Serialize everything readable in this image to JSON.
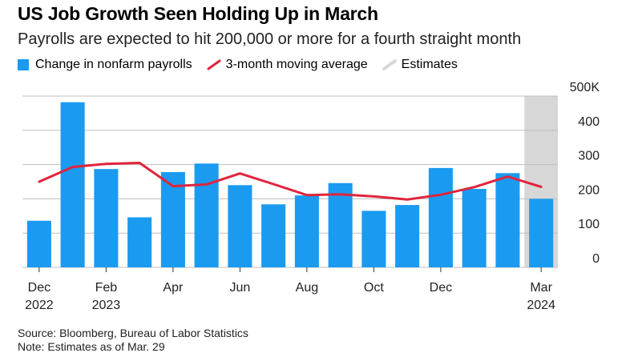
{
  "title": "US Job Growth Seen Holding Up in March",
  "subtitle": "Payrolls are expected to hit 200,000 or more for a fourth straight month",
  "legend": {
    "bars": "Change in nonfarm payrolls",
    "line": "3-month moving average",
    "estimates": "Estimates"
  },
  "footer": {
    "source": "Source: Bloomberg, Bureau of Labor Statistics",
    "note": "Note: Estimates as of Mar. 29"
  },
  "colors": {
    "bar": "#1a9bf0",
    "line": "#e0243c",
    "estimate_band": "#d7d7d7",
    "grid": "#bfbfbf"
  },
  "chart_data": {
    "type": "bar",
    "categories": [
      "Dec 2022",
      "Jan 2023",
      "Feb 2023",
      "Mar 2023",
      "Apr 2023",
      "May 2023",
      "Jun 2023",
      "Jul 2023",
      "Aug 2023",
      "Sep 2023",
      "Oct 2023",
      "Nov 2023",
      "Dec 2023",
      "Jan 2024",
      "Feb 2024",
      "Mar 2024"
    ],
    "x_tick_labels": [
      {
        "index": 0,
        "line1": "Dec",
        "line2": "2022"
      },
      {
        "index": 2,
        "line1": "Feb",
        "line2": "2023"
      },
      {
        "index": 4,
        "line1": "Apr",
        "line2": ""
      },
      {
        "index": 6,
        "line1": "Jun",
        "line2": ""
      },
      {
        "index": 8,
        "line1": "Aug",
        "line2": ""
      },
      {
        "index": 10,
        "line1": "Oct",
        "line2": ""
      },
      {
        "index": 12,
        "line1": "Dec",
        "line2": ""
      },
      {
        "index": 15,
        "line1": "Mar",
        "line2": "2024"
      }
    ],
    "series": [
      {
        "name": "Change in nonfarm payrolls",
        "type": "bar",
        "values": [
          136,
          482,
          287,
          146,
          278,
          303,
          240,
          184,
          210,
          246,
          165,
          182,
          290,
          229,
          275,
          200
        ]
      },
      {
        "name": "3-month moving average",
        "type": "line",
        "values": [
          250,
          293,
          302,
          305,
          237,
          242,
          274,
          243,
          211,
          213,
          207,
          198,
          212,
          234,
          265,
          235
        ]
      }
    ],
    "estimate_categories": [
      "Mar 2024"
    ],
    "y_ticks": [
      0,
      100,
      200,
      300,
      400,
      500
    ],
    "y_tick_labels": [
      "0",
      "100",
      "200",
      "300",
      "400",
      "500K"
    ],
    "ylim": [
      0,
      500
    ],
    "grid": true,
    "y_axis_side": "right",
    "legend_position": "top-left"
  }
}
